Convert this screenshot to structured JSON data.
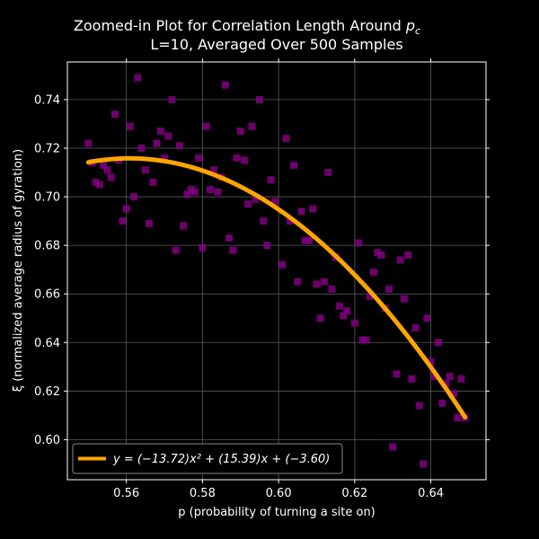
{
  "chart_data": {
    "type": "scatter",
    "title_line1": "Zoomed-in Plot for Correlation Length Around ",
    "title_line1_sym": "p",
    "title_line1_sub": "c",
    "title_line2": "L=10, Averaged Over 500 Samples",
    "xlabel": "p (probability of turning a site on)",
    "ylabel": "ξ (normalized average radius of gyration)",
    "xlim": [
      0.5445,
      0.6545
    ],
    "ylim": [
      0.5835,
      0.7555
    ],
    "xticks": [
      0.56,
      0.58,
      0.6,
      0.62,
      0.64
    ],
    "xtick_labels": [
      "0.56",
      "0.58",
      "0.60",
      "0.62",
      "0.64"
    ],
    "yticks": [
      0.6,
      0.62,
      0.64,
      0.66,
      0.68,
      0.7,
      0.72,
      0.74
    ],
    "ytick_labels": [
      "0.60",
      "0.62",
      "0.64",
      "0.66",
      "0.68",
      "0.70",
      "0.72",
      "0.74"
    ],
    "grid": true,
    "legend_position": "lower-left",
    "legend_label": "y = (−13.72)x² + (15.39)x + (−3.60)",
    "series": [
      {
        "kind": "scatter",
        "marker": "square",
        "color": "#800080",
        "points": [
          [
            0.55,
            0.722
          ],
          [
            0.551,
            0.714
          ],
          [
            0.552,
            0.706
          ],
          [
            0.553,
            0.705
          ],
          [
            0.554,
            0.713
          ],
          [
            0.555,
            0.711
          ],
          [
            0.556,
            0.708
          ],
          [
            0.557,
            0.734
          ],
          [
            0.558,
            0.715
          ],
          [
            0.559,
            0.69
          ],
          [
            0.56,
            0.695
          ],
          [
            0.561,
            0.729
          ],
          [
            0.562,
            0.7
          ],
          [
            0.563,
            0.749
          ],
          [
            0.564,
            0.72
          ],
          [
            0.565,
            0.711
          ],
          [
            0.566,
            0.689
          ],
          [
            0.567,
            0.706
          ],
          [
            0.568,
            0.722
          ],
          [
            0.569,
            0.727
          ],
          [
            0.57,
            0.716
          ],
          [
            0.571,
            0.725
          ],
          [
            0.572,
            0.74
          ],
          [
            0.573,
            0.678
          ],
          [
            0.574,
            0.721
          ],
          [
            0.575,
            0.688
          ],
          [
            0.576,
            0.701
          ],
          [
            0.577,
            0.703
          ],
          [
            0.578,
            0.702
          ],
          [
            0.579,
            0.716
          ],
          [
            0.58,
            0.679
          ],
          [
            0.581,
            0.729
          ],
          [
            0.582,
            0.703
          ],
          [
            0.583,
            0.711
          ],
          [
            0.584,
            0.702
          ],
          [
            0.585,
            0.708
          ],
          [
            0.586,
            0.746
          ],
          [
            0.587,
            0.683
          ],
          [
            0.588,
            0.678
          ],
          [
            0.589,
            0.716
          ],
          [
            0.59,
            0.727
          ],
          [
            0.591,
            0.715
          ],
          [
            0.592,
            0.697
          ],
          [
            0.593,
            0.729
          ],
          [
            0.594,
            0.699
          ],
          [
            0.595,
            0.74
          ],
          [
            0.596,
            0.69
          ],
          [
            0.597,
            0.68
          ],
          [
            0.598,
            0.707
          ],
          [
            0.599,
            0.698
          ],
          [
            0.601,
            0.672
          ],
          [
            0.602,
            0.724
          ],
          [
            0.603,
            0.69
          ],
          [
            0.604,
            0.713
          ],
          [
            0.605,
            0.665
          ],
          [
            0.606,
            0.694
          ],
          [
            0.607,
            0.682
          ],
          [
            0.608,
            0.682
          ],
          [
            0.609,
            0.695
          ],
          [
            0.61,
            0.664
          ],
          [
            0.611,
            0.65
          ],
          [
            0.612,
            0.665
          ],
          [
            0.613,
            0.71
          ],
          [
            0.614,
            0.662
          ],
          [
            0.615,
            0.675
          ],
          [
            0.616,
            0.655
          ],
          [
            0.617,
            0.651
          ],
          [
            0.618,
            0.653
          ],
          [
            0.62,
            0.648
          ],
          [
            0.621,
            0.681
          ],
          [
            0.622,
            0.641
          ],
          [
            0.623,
            0.641
          ],
          [
            0.624,
            0.659
          ],
          [
            0.625,
            0.669
          ],
          [
            0.626,
            0.677
          ],
          [
            0.627,
            0.676
          ],
          [
            0.628,
            0.654
          ],
          [
            0.629,
            0.662
          ],
          [
            0.63,
            0.597
          ],
          [
            0.631,
            0.627
          ],
          [
            0.632,
            0.674
          ],
          [
            0.633,
            0.658
          ],
          [
            0.634,
            0.676
          ],
          [
            0.635,
            0.625
          ],
          [
            0.636,
            0.646
          ],
          [
            0.637,
            0.614
          ],
          [
            0.638,
            0.59
          ],
          [
            0.639,
            0.65
          ],
          [
            0.64,
            0.632
          ],
          [
            0.641,
            0.626
          ],
          [
            0.642,
            0.64
          ],
          [
            0.643,
            0.615
          ],
          [
            0.644,
            0.623
          ],
          [
            0.645,
            0.626
          ],
          [
            0.646,
            0.619
          ],
          [
            0.647,
            0.609
          ],
          [
            0.648,
            0.625
          ],
          [
            0.649,
            0.609
          ]
        ]
      },
      {
        "kind": "fit-curve",
        "color": "#FFA500",
        "coefficients": {
          "a": -13.72,
          "b": 15.39,
          "c": -3.6
        },
        "x_range": [
          0.55,
          0.649
        ]
      }
    ]
  }
}
